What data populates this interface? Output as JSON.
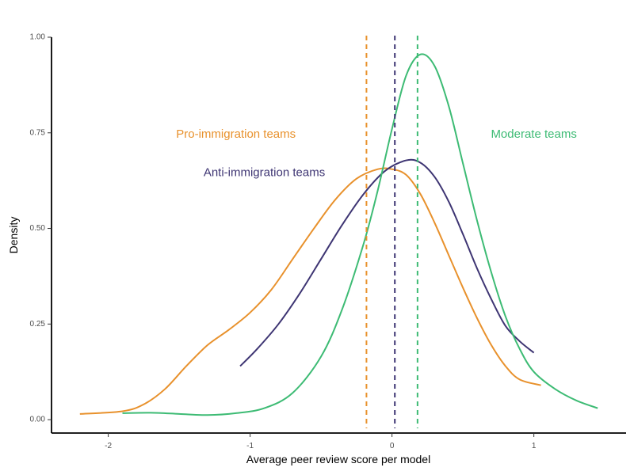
{
  "chart_data": {
    "type": "line",
    "title": "",
    "xlabel": "Average peer review score per model",
    "ylabel": "Density",
    "xlim": [
      -2.4,
      1.65
    ],
    "ylim": [
      -0.035,
      1.0
    ],
    "x_ticks": [
      {
        "value": -2,
        "label": "-2"
      },
      {
        "value": -1,
        "label": "-1"
      },
      {
        "value": 0,
        "label": "0"
      },
      {
        "value": 1,
        "label": "1"
      }
    ],
    "y_ticks": [
      {
        "value": 0.0,
        "label": "0.00"
      },
      {
        "value": 0.25,
        "label": "0.25"
      },
      {
        "value": 0.5,
        "label": "0.50"
      },
      {
        "value": 0.75,
        "label": "0.75"
      },
      {
        "value": 1.0,
        "label": "1.00"
      }
    ],
    "grid": false,
    "legend": "none",
    "series": [
      {
        "name": "Pro-immigration teams",
        "color": "#E8912C",
        "mean": -0.18,
        "points": [
          [
            -2.2,
            0.015
          ],
          [
            -1.9,
            0.022
          ],
          [
            -1.75,
            0.04
          ],
          [
            -1.6,
            0.08
          ],
          [
            -1.45,
            0.14
          ],
          [
            -1.3,
            0.195
          ],
          [
            -1.15,
            0.235
          ],
          [
            -1.0,
            0.28
          ],
          [
            -0.85,
            0.34
          ],
          [
            -0.7,
            0.42
          ],
          [
            -0.55,
            0.5
          ],
          [
            -0.4,
            0.575
          ],
          [
            -0.25,
            0.63
          ],
          [
            -0.1,
            0.655
          ],
          [
            0.0,
            0.655
          ],
          [
            0.1,
            0.64
          ],
          [
            0.2,
            0.59
          ],
          [
            0.3,
            0.515
          ],
          [
            0.4,
            0.43
          ],
          [
            0.5,
            0.345
          ],
          [
            0.6,
            0.265
          ],
          [
            0.7,
            0.195
          ],
          [
            0.8,
            0.14
          ],
          [
            0.9,
            0.105
          ],
          [
            1.05,
            0.09
          ]
        ]
      },
      {
        "name": "Anti-immigration teams",
        "color": "#3E3573",
        "mean": 0.02,
        "points": [
          [
            -1.07,
            0.14
          ],
          [
            -0.95,
            0.185
          ],
          [
            -0.8,
            0.25
          ],
          [
            -0.65,
            0.33
          ],
          [
            -0.5,
            0.42
          ],
          [
            -0.35,
            0.51
          ],
          [
            -0.2,
            0.59
          ],
          [
            -0.05,
            0.65
          ],
          [
            0.1,
            0.678
          ],
          [
            0.2,
            0.672
          ],
          [
            0.3,
            0.635
          ],
          [
            0.4,
            0.57
          ],
          [
            0.5,
            0.485
          ],
          [
            0.6,
            0.395
          ],
          [
            0.7,
            0.315
          ],
          [
            0.8,
            0.245
          ],
          [
            0.9,
            0.205
          ],
          [
            1.0,
            0.175
          ]
        ]
      },
      {
        "name": "Moderate teams",
        "color": "#3DBB74",
        "mean": 0.18,
        "points": [
          [
            -1.9,
            0.017
          ],
          [
            -1.7,
            0.018
          ],
          [
            -1.5,
            0.015
          ],
          [
            -1.3,
            0.012
          ],
          [
            -1.1,
            0.017
          ],
          [
            -0.9,
            0.03
          ],
          [
            -0.7,
            0.07
          ],
          [
            -0.5,
            0.165
          ],
          [
            -0.35,
            0.29
          ],
          [
            -0.2,
            0.46
          ],
          [
            -0.1,
            0.6
          ],
          [
            0.0,
            0.76
          ],
          [
            0.1,
            0.9
          ],
          [
            0.2,
            0.955
          ],
          [
            0.3,
            0.925
          ],
          [
            0.4,
            0.82
          ],
          [
            0.5,
            0.67
          ],
          [
            0.6,
            0.52
          ],
          [
            0.7,
            0.385
          ],
          [
            0.8,
            0.27
          ],
          [
            0.9,
            0.185
          ],
          [
            1.0,
            0.125
          ],
          [
            1.15,
            0.08
          ],
          [
            1.3,
            0.05
          ],
          [
            1.45,
            0.03
          ]
        ]
      }
    ],
    "annotations": [
      {
        "text": "Pro-immigration teams",
        "x": -1.1,
        "y": 0.745,
        "color": "#E8912C"
      },
      {
        "text": "Anti-immigration teams",
        "x": -0.9,
        "y": 0.645,
        "color": "#3E3573"
      },
      {
        "text": "Moderate teams",
        "x": 1.0,
        "y": 0.745,
        "color": "#3DBB74"
      }
    ]
  }
}
